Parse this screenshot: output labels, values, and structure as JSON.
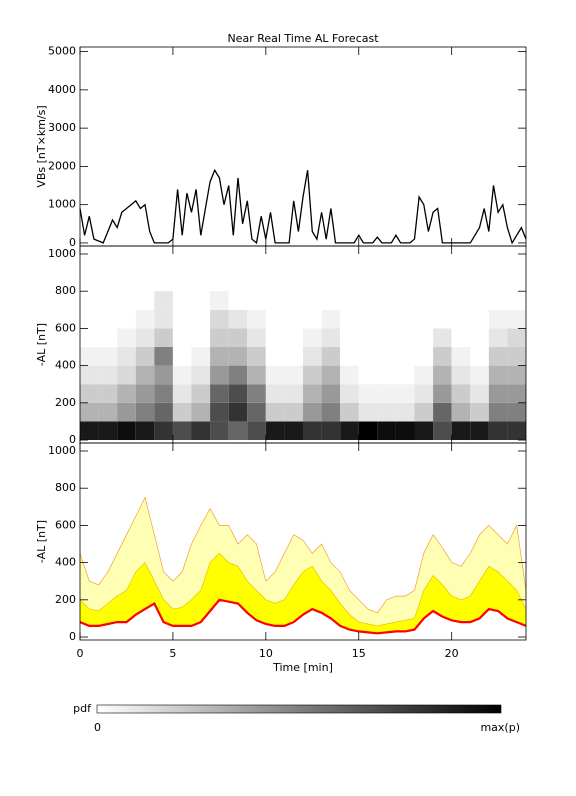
{
  "chart_data": [
    {
      "type": "line",
      "title": "Near Real Time AL Forecast",
      "ylabel": "VBs [nT×km/s]",
      "x": [
        0,
        0.25,
        0.5,
        0.75,
        1,
        1.25,
        1.5,
        1.75,
        2,
        2.25,
        2.5,
        2.75,
        3,
        3.25,
        3.5,
        3.75,
        4,
        4.25,
        4.5,
        4.75,
        5,
        5.25,
        5.5,
        5.75,
        6,
        6.25,
        6.5,
        6.75,
        7,
        7.25,
        7.5,
        7.75,
        8,
        8.25,
        8.5,
        8.75,
        9,
        9.25,
        9.5,
        9.75,
        10,
        10.25,
        10.5,
        10.75,
        11,
        11.25,
        11.5,
        11.75,
        12,
        12.25,
        12.5,
        12.75,
        13,
        13.25,
        13.5,
        13.75,
        14,
        14.25,
        14.5,
        14.75,
        15,
        15.25,
        15.5,
        15.75,
        16,
        16.25,
        16.5,
        16.75,
        17,
        17.25,
        17.5,
        17.75,
        18,
        18.25,
        18.5,
        18.75,
        19,
        19.25,
        19.5,
        19.75,
        20,
        20.25,
        20.5,
        20.75,
        21,
        21.25,
        21.5,
        21.75,
        22,
        22.25,
        22.5,
        22.75,
        23,
        23.25,
        23.5,
        23.75,
        24
      ],
      "series": [
        {
          "color": "#000000",
          "values": [
            900,
            200,
            700,
            100,
            50,
            0,
            300,
            600,
            400,
            800,
            900,
            1000,
            1100,
            900,
            1000,
            300,
            0,
            0,
            0,
            0,
            100,
            1400,
            200,
            1300,
            800,
            1400,
            200,
            900,
            1600,
            1900,
            1700,
            1000,
            1500,
            200,
            1700,
            500,
            1100,
            100,
            0,
            700,
            100,
            800,
            0,
            0,
            0,
            0,
            1100,
            300,
            1200,
            1900,
            300,
            100,
            800,
            100,
            900,
            0,
            0,
            0,
            0,
            0,
            200,
            0,
            0,
            0,
            150,
            0,
            0,
            0,
            200,
            0,
            0,
            0,
            100,
            1200,
            1000,
            300,
            800,
            900,
            0,
            0,
            0,
            0,
            0,
            0,
            0,
            200,
            400,
            900,
            300,
            1500,
            800,
            1000,
            400,
            0,
            200,
            400,
            100
          ]
        }
      ],
      "xlim": [
        0,
        24
      ],
      "xticks": [
        0,
        5,
        10,
        15,
        20
      ],
      "ylim": [
        -80,
        5120
      ],
      "yticks": [
        0,
        1000,
        2000,
        3000,
        4000,
        5000
      ]
    },
    {
      "type": "heatmap",
      "ylabel": "-AL [nT]",
      "xbins": [
        0,
        1,
        2,
        3,
        4,
        5,
        6,
        7,
        8,
        9,
        10,
        11,
        12,
        13,
        14,
        15,
        16,
        17,
        18,
        19,
        20,
        21,
        22,
        23,
        24
      ],
      "ybins": [
        0,
        100,
        200,
        300,
        400,
        500,
        600,
        700,
        800
      ],
      "z": [
        [
          0.9,
          0.9,
          0.95,
          0.9,
          0.8,
          0.7,
          0.8,
          0.7,
          0.6,
          0.7,
          0.9,
          0.9,
          0.8,
          0.8,
          0.9,
          1,
          0.95,
          0.95,
          0.9,
          0.7,
          0.9,
          0.9,
          0.8,
          0.8
        ],
        [
          0.3,
          0.3,
          0.4,
          0.5,
          0.6,
          0.2,
          0.3,
          0.7,
          0.8,
          0.6,
          0.2,
          0.2,
          0.4,
          0.5,
          0.2,
          0.1,
          0.1,
          0.1,
          0.2,
          0.6,
          0.3,
          0.2,
          0.5,
          0.5
        ],
        [
          0.2,
          0.2,
          0.3,
          0.4,
          0.5,
          0.1,
          0.2,
          0.6,
          0.7,
          0.5,
          0.1,
          0.1,
          0.3,
          0.4,
          0.1,
          0.05,
          0.05,
          0.05,
          0.1,
          0.4,
          0.2,
          0.1,
          0.4,
          0.4
        ],
        [
          0.1,
          0.1,
          0.15,
          0.3,
          0.4,
          0.05,
          0.1,
          0.4,
          0.5,
          0.3,
          0.05,
          0.05,
          0.2,
          0.3,
          0.05,
          0,
          0,
          0,
          0.05,
          0.3,
          0.1,
          0.05,
          0.3,
          0.3
        ],
        [
          0.05,
          0.05,
          0.1,
          0.2,
          0.5,
          0,
          0.05,
          0.3,
          0.3,
          0.2,
          0,
          0,
          0.1,
          0.2,
          0,
          0,
          0,
          0,
          0,
          0.2,
          0.05,
          0,
          0.2,
          0.2
        ],
        [
          0,
          0,
          0.05,
          0.1,
          0.2,
          0,
          0,
          0.2,
          0.2,
          0.1,
          0,
          0,
          0.05,
          0.1,
          0,
          0,
          0,
          0,
          0,
          0.1,
          0,
          0,
          0.1,
          0.15
        ],
        [
          0,
          0,
          0,
          0.05,
          0.1,
          0,
          0,
          0.15,
          0.1,
          0.05,
          0,
          0,
          0,
          0.05,
          0,
          0,
          0,
          0,
          0,
          0,
          0,
          0,
          0.05,
          0.05
        ],
        [
          0,
          0,
          0,
          0,
          0.1,
          0,
          0,
          0.05,
          0,
          0,
          0,
          0,
          0,
          0,
          0,
          0,
          0,
          0,
          0,
          0,
          0,
          0,
          0,
          0
        ]
      ],
      "color": "#000000",
      "colorbar": {
        "label": "pdf",
        "min_label": "0",
        "max_label": "max(p)"
      },
      "xlim": [
        0,
        24
      ],
      "xticks": [
        0,
        5,
        10,
        15,
        20
      ],
      "ylim": [
        -16,
        1043
      ],
      "yticks": [
        0,
        200,
        400,
        600,
        800,
        1000
      ]
    },
    {
      "type": "band",
      "ylabel": "-AL [nT]",
      "xlabel": "Time [min]",
      "x": [
        0,
        0.5,
        1,
        1.5,
        2,
        2.5,
        3,
        3.5,
        4,
        4.5,
        5,
        5.5,
        6,
        6.5,
        7,
        7.5,
        8,
        8.5,
        9,
        9.5,
        10,
        10.5,
        11,
        11.5,
        12,
        12.5,
        13,
        13.5,
        14,
        14.5,
        15,
        15.5,
        16,
        16.5,
        17,
        17.5,
        18,
        18.5,
        19,
        19.5,
        20,
        20.5,
        21,
        21.5,
        22,
        22.5,
        23,
        23.5,
        24
      ],
      "series": [
        {
          "color": "#f0a030",
          "fill": "#ffffb4",
          "values": [
            450,
            300,
            280,
            350,
            450,
            550,
            650,
            750,
            550,
            350,
            300,
            350,
            500,
            600,
            690,
            600,
            600,
            500,
            550,
            500,
            300,
            350,
            450,
            550,
            520,
            450,
            500,
            400,
            350,
            250,
            200,
            150,
            130,
            200,
            220,
            220,
            250,
            450,
            550,
            480,
            400,
            380,
            450,
            550,
            600,
            550,
            500,
            600,
            250
          ]
        },
        {
          "color": "#e8c000",
          "fill": "#ffff00",
          "values": [
            200,
            150,
            140,
            180,
            220,
            250,
            350,
            400,
            300,
            200,
            150,
            160,
            200,
            250,
            400,
            450,
            400,
            380,
            300,
            250,
            200,
            180,
            200,
            280,
            350,
            380,
            300,
            250,
            180,
            120,
            80,
            70,
            60,
            70,
            80,
            90,
            100,
            250,
            330,
            280,
            220,
            200,
            220,
            300,
            380,
            350,
            300,
            250,
            150
          ]
        },
        {
          "color": "#ff0000",
          "values": [
            80,
            60,
            60,
            70,
            80,
            80,
            120,
            150,
            180,
            80,
            60,
            60,
            60,
            80,
            140,
            200,
            190,
            180,
            130,
            90,
            70,
            60,
            60,
            80,
            120,
            150,
            130,
            100,
            60,
            40,
            30,
            25,
            20,
            25,
            30,
            30,
            40,
            100,
            140,
            110,
            90,
            80,
            80,
            100,
            150,
            140,
            100,
            80,
            60
          ]
        }
      ],
      "xlim": [
        0,
        24
      ],
      "xticks": [
        0,
        5,
        10,
        15,
        20
      ],
      "ylim": [
        -16,
        1043
      ],
      "yticks": [
        0,
        200,
        400,
        600,
        800,
        1000
      ]
    }
  ]
}
